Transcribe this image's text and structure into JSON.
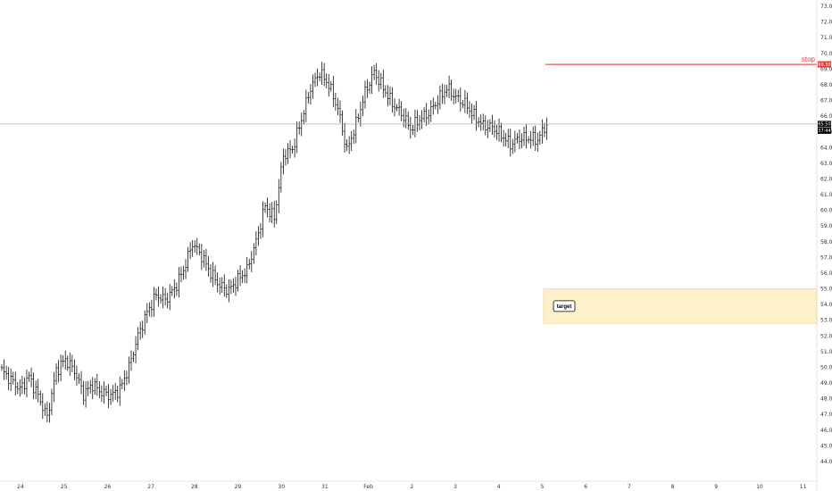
{
  "chart_data": {
    "type": "bar",
    "style": "ohlc",
    "x_labels": [
      "24",
      "25",
      "26",
      "27",
      "28",
      "29",
      "30",
      "31",
      "Feb",
      "2",
      "3",
      "4",
      "5",
      "6",
      "7",
      "8",
      "9",
      "10",
      "11"
    ],
    "y_ticks": [
      "44.00",
      "45.00",
      "46.00",
      "47.00",
      "48.00",
      "49.00",
      "50.00",
      "51.00",
      "52.00",
      "53.00",
      "54.00",
      "55.00",
      "56.00",
      "57.00",
      "58.00",
      "59.00",
      "60.00",
      "61.00",
      "62.00",
      "63.00",
      "64.00",
      "65.00",
      "66.00",
      "67.00",
      "68.00",
      "69.00",
      "70.00",
      "71.00",
      "72.00",
      "73.00"
    ],
    "ylim": [
      43.8,
      73.6
    ],
    "last_price": 65.5,
    "last_price_label": "65.50",
    "countdown_label": "37:44",
    "stop": {
      "label": "stop",
      "price": 69.3,
      "price_label": "69.30",
      "color": "#e53935"
    },
    "target": {
      "label": "target",
      "low": 52.8,
      "high": 55.0
    },
    "anchors": [
      [
        0,
        49.8
      ],
      [
        8,
        48.6
      ],
      [
        12,
        49.4
      ],
      [
        16,
        48.2
      ],
      [
        20,
        46.8
      ],
      [
        24,
        49.8
      ],
      [
        28,
        50.5
      ],
      [
        32,
        49.8
      ],
      [
        36,
        48.3
      ],
      [
        40,
        48.9
      ],
      [
        44,
        48.4
      ],
      [
        48,
        48.2
      ],
      [
        52,
        48.6
      ],
      [
        56,
        50.0
      ],
      [
        60,
        52.0
      ],
      [
        64,
        53.5
      ],
      [
        68,
        54.6
      ],
      [
        72,
        54.3
      ],
      [
        76,
        55.0
      ],
      [
        80,
        56.2
      ],
      [
        84,
        57.9
      ],
      [
        88,
        57.1
      ],
      [
        92,
        56.0
      ],
      [
        96,
        55.2
      ],
      [
        100,
        54.9
      ],
      [
        104,
        55.6
      ],
      [
        108,
        56.2
      ],
      [
        112,
        58.0
      ],
      [
        116,
        60.3
      ],
      [
        120,
        59.5
      ],
      [
        124,
        63.5
      ],
      [
        128,
        63.9
      ],
      [
        132,
        65.8
      ],
      [
        136,
        67.8
      ],
      [
        140,
        68.8
      ],
      [
        144,
        68.0
      ],
      [
        148,
        66.5
      ],
      [
        152,
        63.8
      ],
      [
        156,
        65.5
      ],
      [
        160,
        67.5
      ],
      [
        164,
        68.8
      ],
      [
        168,
        67.8
      ],
      [
        172,
        66.8
      ],
      [
        176,
        66.2
      ],
      [
        180,
        65.2
      ],
      [
        184,
        65.8
      ],
      [
        188,
        66.2
      ],
      [
        192,
        67.0
      ],
      [
        196,
        67.8
      ],
      [
        200,
        67.2
      ],
      [
        204,
        66.8
      ],
      [
        208,
        66.0
      ],
      [
        212,
        65.4
      ],
      [
        216,
        65.3
      ],
      [
        220,
        64.8
      ],
      [
        224,
        64.2
      ],
      [
        228,
        64.6
      ],
      [
        232,
        64.6
      ],
      [
        236,
        64.5
      ],
      [
        240,
        65.5
      ]
    ]
  }
}
